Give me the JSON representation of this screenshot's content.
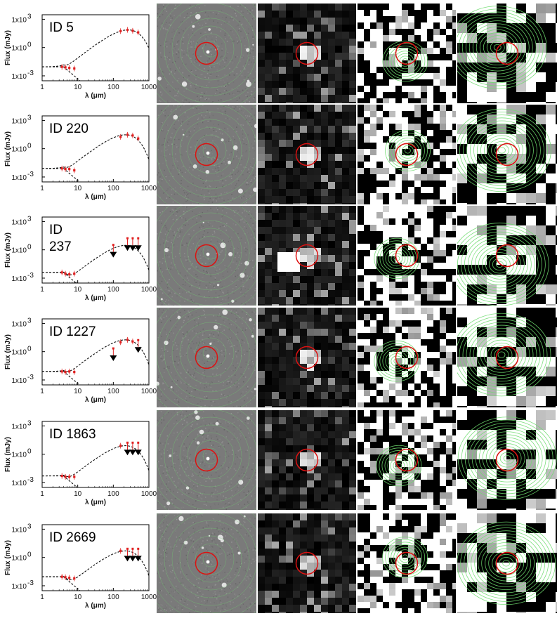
{
  "sources": [
    {
      "id_lines": [
        "ID 5"
      ],
      "red_points": [
        [
          3.6,
          0.009
        ],
        [
          4.5,
          0.008
        ],
        [
          5.8,
          0.007
        ],
        [
          8,
          0.006
        ],
        [
          160,
          55
        ],
        [
          250,
          75
        ],
        [
          350,
          60
        ],
        [
          500,
          40
        ]
      ],
      "upper_limits": []
    },
    {
      "id_lines": [
        "ID 220"
      ],
      "red_points": [
        [
          3.6,
          0.008
        ],
        [
          4.5,
          0.007
        ],
        [
          5.8,
          0.007
        ],
        [
          8,
          0.005
        ],
        [
          160,
          18
        ],
        [
          250,
          30
        ],
        [
          350,
          25
        ],
        [
          500,
          12
        ]
      ],
      "upper_limits": []
    },
    {
      "id_lines": [
        "ID",
        "237"
      ],
      "red_points": [
        [
          3.6,
          0.004
        ],
        [
          4.5,
          0.003
        ],
        [
          5.8,
          0.0025
        ],
        [
          8,
          0.003
        ]
      ],
      "upper_limits": [
        [
          100,
          0.6
        ],
        [
          250,
          3
        ],
        [
          350,
          3
        ],
        [
          500,
          3
        ]
      ]
    },
    {
      "id_lines": [
        "ID 1227"
      ],
      "red_points": [
        [
          3.6,
          0.008
        ],
        [
          4.5,
          0.007
        ],
        [
          5.8,
          0.008
        ],
        [
          8,
          0.007
        ],
        [
          160,
          10
        ],
        [
          250,
          18
        ],
        [
          350,
          12
        ]
      ],
      "upper_limits": [
        [
          100,
          0.4
        ],
        [
          500,
          3
        ]
      ]
    },
    {
      "id_lines": [
        "ID 1863"
      ],
      "red_points": [
        [
          3.6,
          0.005
        ],
        [
          4.5,
          0.004
        ],
        [
          5.8,
          0.004
        ],
        [
          8,
          0.004
        ],
        [
          160,
          8
        ]
      ],
      "upper_limits": [
        [
          250,
          3
        ],
        [
          350,
          3
        ],
        [
          500,
          3
        ]
      ]
    },
    {
      "id_lines": [
        "ID 2669"
      ],
      "red_points": [
        [
          3.6,
          0.009
        ],
        [
          4.5,
          0.008
        ],
        [
          5.8,
          0.007
        ],
        [
          8,
          0.006
        ],
        [
          160,
          5
        ]
      ],
      "upper_limits": [
        [
          250,
          1.5
        ],
        [
          350,
          1.5
        ],
        [
          500,
          1.5
        ]
      ]
    }
  ],
  "sed_axes": {
    "xlabel": "λ  (μm)",
    "ylabel": "Flux (mJy)",
    "x_ticks": [
      "1",
      "10",
      "100",
      "1000"
    ],
    "x_tick_values": [
      1,
      10,
      100,
      1000
    ],
    "y_ticks": [
      "1x10",
      "1x10",
      "1x10"
    ],
    "y_tick_exps": [
      "-3",
      "0",
      "3"
    ],
    "y_tick_values": [
      0.001,
      1,
      1000
    ],
    "xlim": [
      1,
      1000
    ],
    "ylim": [
      0.0003,
      3000
    ],
    "xscale": "log",
    "yscale": "log"
  },
  "colors": {
    "data_point": "#e02020",
    "model_line": "#111111",
    "upper_limit_arrow": "#000000",
    "aperture_circle": "#dd1111",
    "contour": "#6fdc6f"
  },
  "cutout_columns": [
    "optical",
    "mid-ir",
    "far-ir-short",
    "far-ir-long"
  ]
}
